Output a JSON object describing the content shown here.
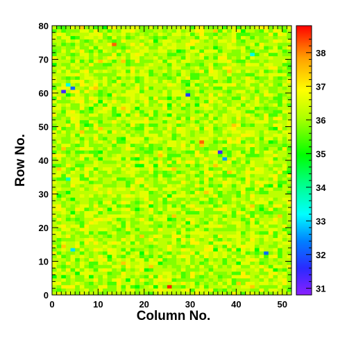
{
  "chart_data": {
    "type": "heatmap",
    "title": "",
    "xlabel": "Column No.",
    "ylabel": "Row No.",
    "xlim": [
      0,
      52
    ],
    "ylim": [
      0,
      80
    ],
    "n_columns": 52,
    "n_rows": 80,
    "x_ticks": [
      0,
      10,
      20,
      30,
      40,
      50
    ],
    "y_ticks": [
      0,
      10,
      20,
      30,
      40,
      50,
      60,
      70,
      80
    ],
    "colorbar": {
      "range": [
        30.8,
        38.8
      ],
      "ticks": [
        31,
        32,
        33,
        34,
        35,
        36,
        37,
        38
      ],
      "palette": "rainbow"
    },
    "value_distribution": {
      "typical_min": 34.8,
      "typical_max": 37.5,
      "center": 36.1
    },
    "outliers": [
      {
        "col": 2,
        "row": 60,
        "value": 31.3
      },
      {
        "col": 4,
        "row": 61,
        "value": 32.1
      },
      {
        "col": 3,
        "row": 62,
        "value": 33.2
      },
      {
        "col": 29,
        "row": 59,
        "value": 32.0
      },
      {
        "col": 36,
        "row": 42,
        "value": 31.4
      },
      {
        "col": 37,
        "row": 40,
        "value": 32.6
      },
      {
        "col": 4,
        "row": 13,
        "value": 33.0
      },
      {
        "col": 46,
        "row": 12,
        "value": 32.4
      },
      {
        "col": 43,
        "row": 71,
        "value": 33.5
      },
      {
        "col": 3,
        "row": 34,
        "value": 33.6
      },
      {
        "col": 25,
        "row": 2,
        "value": 38.4
      },
      {
        "col": 13,
        "row": 74,
        "value": 38.3
      },
      {
        "col": 32,
        "row": 45,
        "value": 38.2
      }
    ]
  }
}
